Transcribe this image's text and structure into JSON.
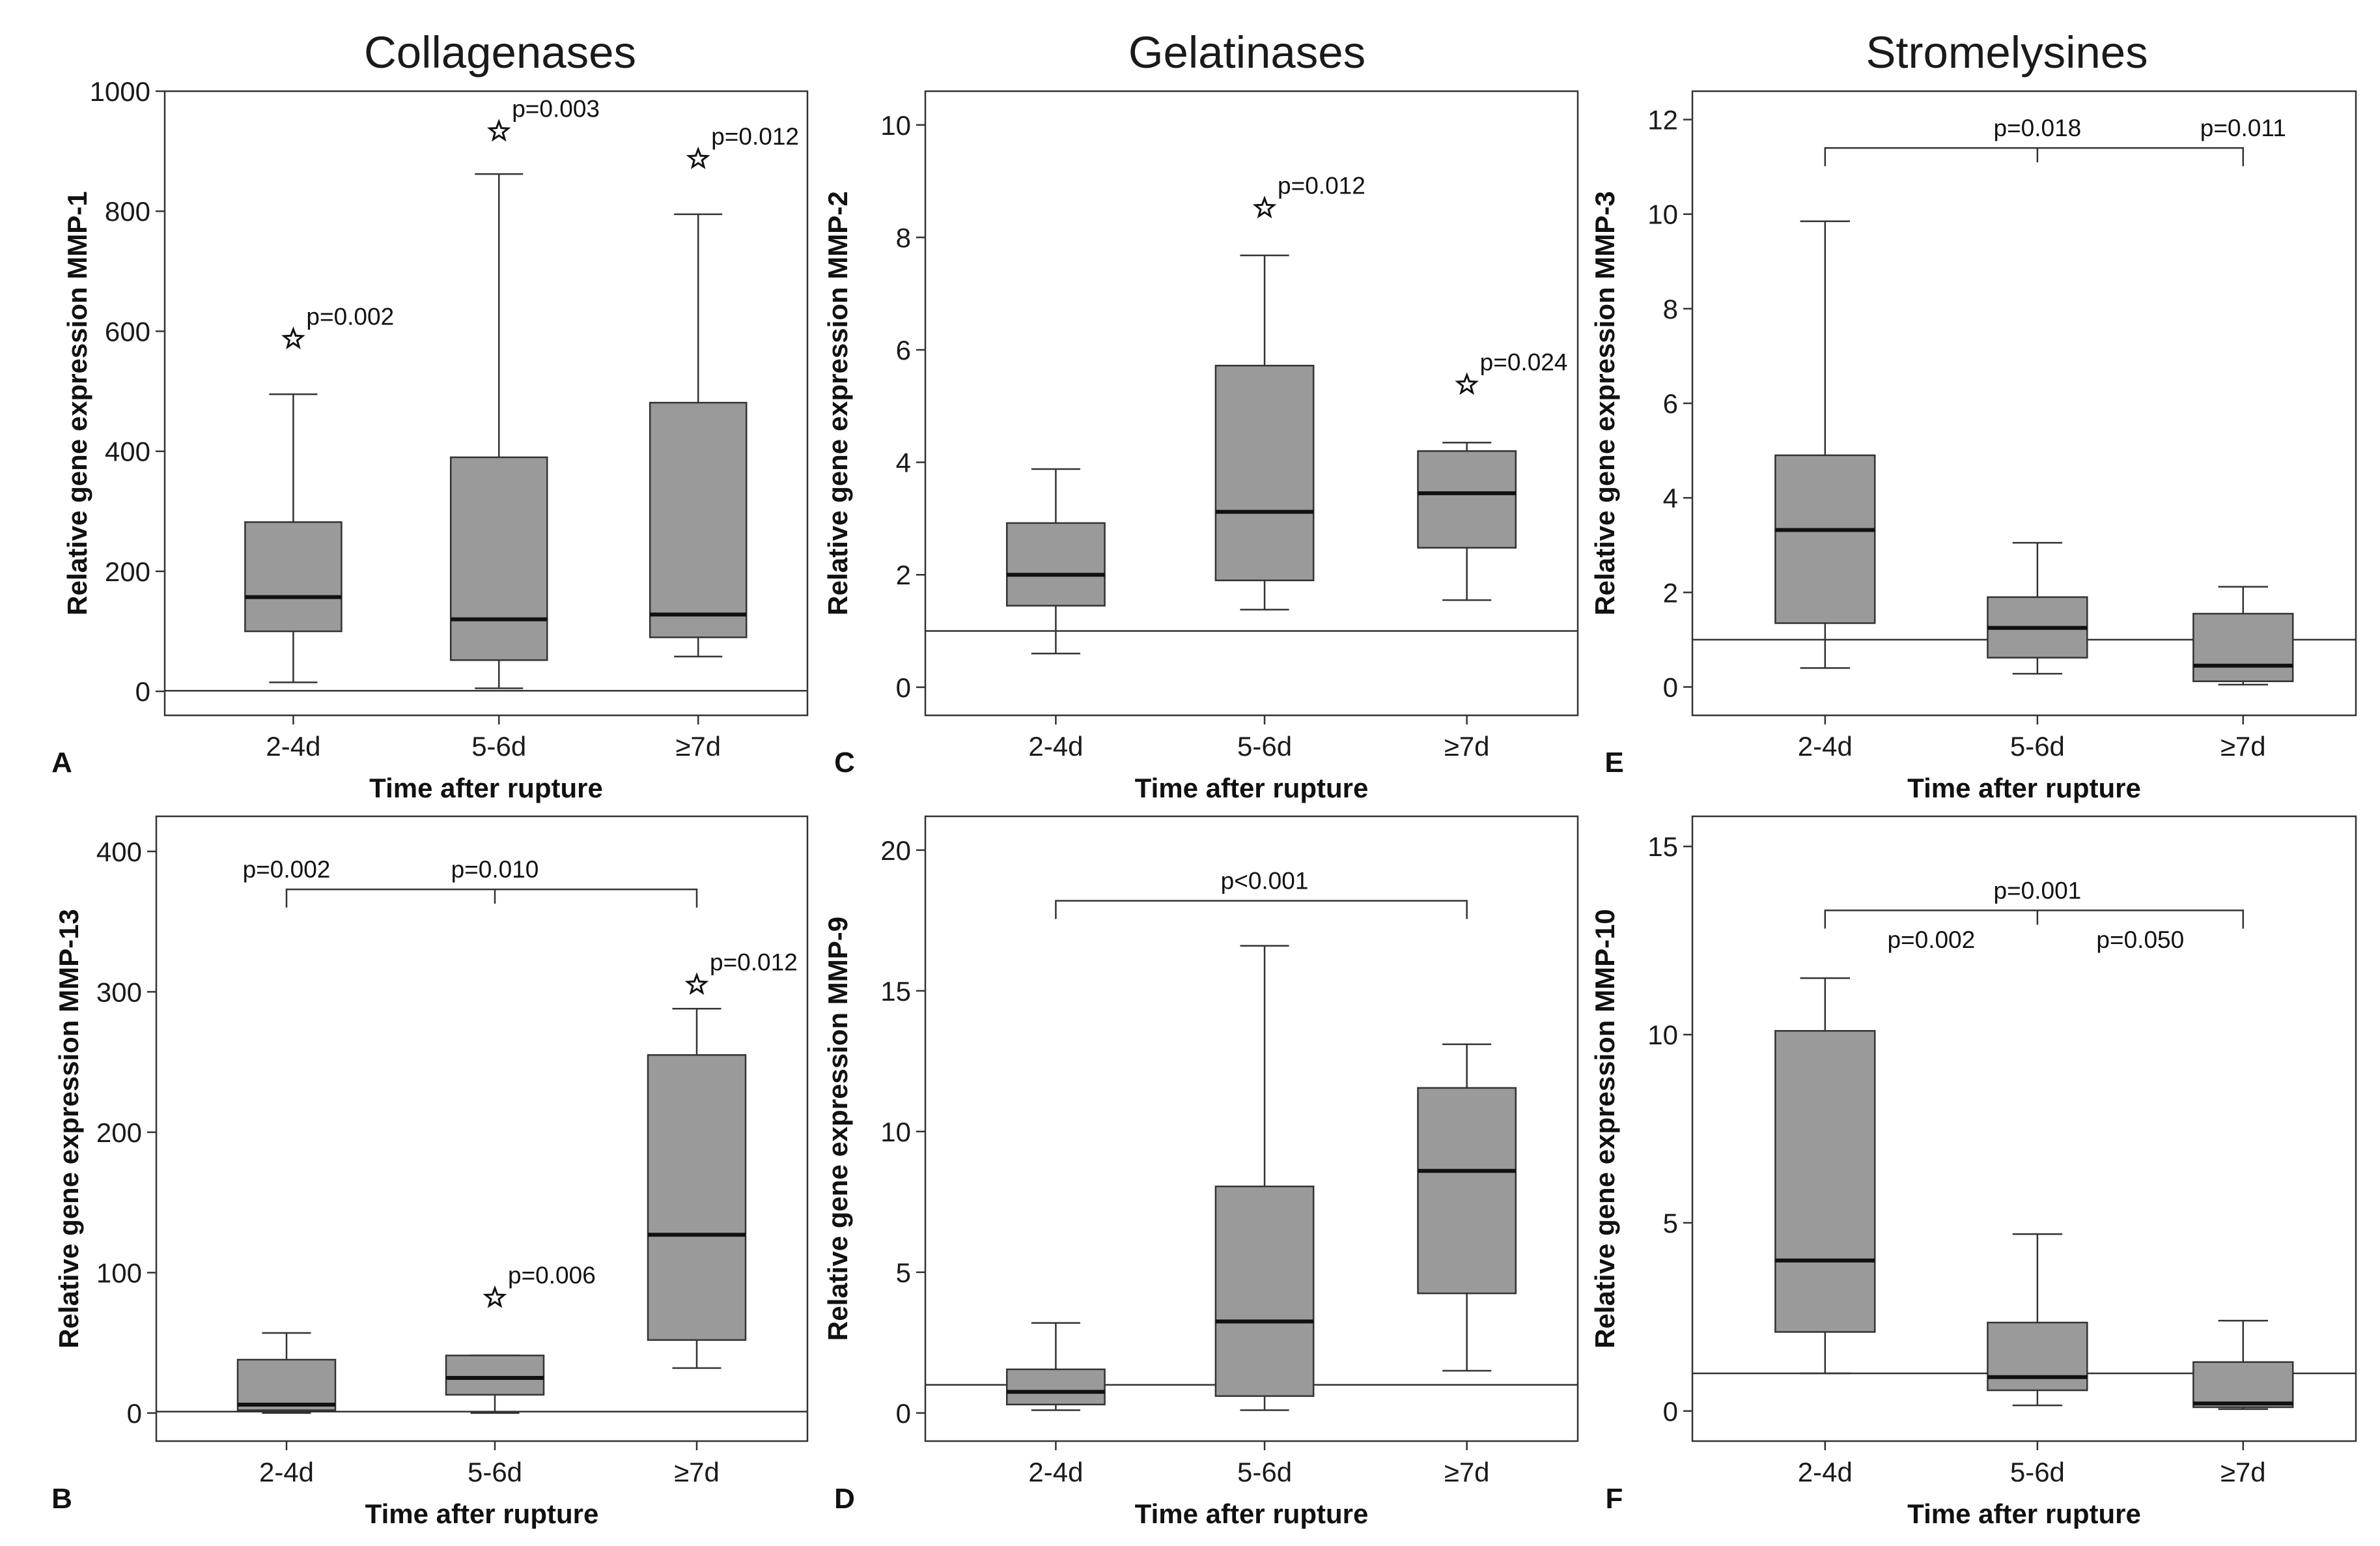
{
  "column_titles": [
    "Collagenases",
    "Gelatinases",
    "Stromelysines"
  ],
  "chart_data": [
    {
      "panel": "A",
      "type": "box",
      "column": "Collagenases",
      "xlabel": "Time after rupture",
      "ylabel": "Relative gene expression MMP-1",
      "categories": [
        "2-4d",
        "5-6d",
        "≥7d"
      ],
      "ylim": [
        -40,
        1000
      ],
      "yticks": [
        0,
        200,
        400,
        600,
        800,
        1000
      ],
      "reference_line": 1,
      "boxes": [
        {
          "min": 15,
          "q1": 100,
          "median": 157,
          "q3": 282,
          "max": 495
        },
        {
          "min": 5,
          "q1": 52,
          "median": 120,
          "q3": 390,
          "max": 862
        },
        {
          "min": 58,
          "q1": 90,
          "median": 128,
          "q3": 481,
          "max": 795
        }
      ],
      "outliers": [
        {
          "category": 0,
          "value": 587,
          "label": "p=0.002"
        },
        {
          "category": 1,
          "value": 933,
          "label": "p=0.003"
        },
        {
          "category": 2,
          "value": 887,
          "label": "p=0.012"
        }
      ],
      "brackets": []
    },
    {
      "panel": "C",
      "type": "box",
      "column": "Gelatinases",
      "xlabel": "Time after rupture",
      "ylabel": "Relative gene expression MMP-2",
      "categories": [
        "2-4d",
        "5-6d",
        "≥7d"
      ],
      "ylim": [
        -0.5,
        10.6
      ],
      "yticks": [
        0,
        2,
        4,
        6,
        8,
        10
      ],
      "reference_line": 1,
      "boxes": [
        {
          "min": 0.6,
          "q1": 1.45,
          "median": 2.0,
          "q3": 2.92,
          "max": 3.88
        },
        {
          "min": 1.38,
          "q1": 1.9,
          "median": 3.12,
          "q3": 5.72,
          "max": 7.68
        },
        {
          "min": 1.55,
          "q1": 2.48,
          "median": 3.45,
          "q3": 4.2,
          "max": 4.35
        }
      ],
      "outliers": [
        {
          "category": 1,
          "value": 8.52,
          "label": "p=0.012"
        },
        {
          "category": 2,
          "value": 5.38,
          "label": "p=0.024"
        }
      ],
      "brackets": []
    },
    {
      "panel": "E",
      "type": "box",
      "column": "Stromelysines",
      "xlabel": "Time after rupture",
      "ylabel": "Relative gene expression MMP-3",
      "categories": [
        "2-4d",
        "5-6d",
        "≥7d"
      ],
      "ylim": [
        -0.6,
        12.6
      ],
      "yticks": [
        0,
        2,
        4,
        6,
        8,
        10,
        12
      ],
      "reference_line": 1,
      "boxes": [
        {
          "min": 0.4,
          "q1": 1.35,
          "median": 3.32,
          "q3": 4.9,
          "max": 9.85
        },
        {
          "min": 0.28,
          "q1": 0.62,
          "median": 1.25,
          "q3": 1.9,
          "max": 3.05
        },
        {
          "min": 0.05,
          "q1": 0.12,
          "median": 0.45,
          "q3": 1.55,
          "max": 2.12
        }
      ],
      "outliers": [],
      "brackets": [
        {
          "from": 0,
          "to": 2,
          "level": 11.4,
          "ticks": [
            1
          ],
          "labels": [
            {
              "at": 1,
              "text": "p=0.018"
            },
            {
              "at": 2,
              "text": "p=0.011"
            }
          ]
        }
      ]
    },
    {
      "panel": "B",
      "type": "box",
      "column": "Collagenases",
      "xlabel": "Time after rupture",
      "ylabel": "Relative gene expression MMP-13",
      "categories": [
        "2-4d",
        "5-6d",
        "≥7d"
      ],
      "ylim": [
        -20,
        425
      ],
      "yticks": [
        0,
        100,
        200,
        300,
        400
      ],
      "reference_line": 1,
      "boxes": [
        {
          "min": 0,
          "q1": 2,
          "median": 6,
          "q3": 38,
          "max": 57
        },
        {
          "min": 0,
          "q1": 13,
          "median": 25,
          "q3": 41,
          "max": 41
        },
        {
          "min": 32,
          "q1": 52,
          "median": 127,
          "q3": 255,
          "max": 288
        }
      ],
      "outliers": [
        {
          "category": 1,
          "value": 82,
          "label": "p=0.006"
        },
        {
          "category": 2,
          "value": 305,
          "label": "p=0.012"
        }
      ],
      "brackets": [
        {
          "from": 0,
          "to": 2,
          "level": 373,
          "ticks": [
            1
          ],
          "labels": [
            {
              "at": 0,
              "text": "p=0.002"
            },
            {
              "at": 1,
              "text": "p=0.010"
            }
          ]
        }
      ]
    },
    {
      "panel": "D",
      "type": "box",
      "column": "Gelatinases",
      "xlabel": "Time after rupture",
      "ylabel": "Relative gene expression MMP-9",
      "categories": [
        "2-4d",
        "5-6d",
        "≥7d"
      ],
      "ylim": [
        -1,
        21.2
      ],
      "yticks": [
        0,
        5,
        10,
        15,
        20
      ],
      "reference_line": 1,
      "boxes": [
        {
          "min": 0.1,
          "q1": 0.3,
          "median": 0.75,
          "q3": 1.55,
          "max": 3.2
        },
        {
          "min": 0.1,
          "q1": 0.6,
          "median": 3.25,
          "q3": 8.05,
          "max": 16.6
        },
        {
          "min": 1.5,
          "q1": 4.25,
          "median": 8.6,
          "q3": 11.55,
          "max": 13.1
        }
      ],
      "outliers": [],
      "brackets": [
        {
          "from": 0,
          "to": 2,
          "level": 18.2,
          "ticks": [],
          "labels": [
            {
              "at": 1,
              "text": "p<0.001"
            }
          ]
        }
      ]
    },
    {
      "panel": "F",
      "type": "box",
      "column": "Stromelysines",
      "xlabel": "Time after rupture",
      "ylabel": "Relative gene expression MMP-10",
      "categories": [
        "2-4d",
        "5-6d",
        "≥7d"
      ],
      "ylim": [
        -0.8,
        15.8
      ],
      "yticks": [
        0,
        5,
        10,
        15
      ],
      "reference_line": 1,
      "boxes": [
        {
          "min": 1.0,
          "q1": 2.1,
          "median": 4.0,
          "q3": 10.1,
          "max": 11.5
        },
        {
          "min": 0.15,
          "q1": 0.55,
          "median": 0.9,
          "q3": 2.35,
          "max": 4.7
        },
        {
          "min": 0.05,
          "q1": 0.1,
          "median": 0.2,
          "q3": 1.3,
          "max": 2.4
        }
      ],
      "outliers": [],
      "brackets": [
        {
          "from": 0,
          "to": 2,
          "level": 13.3,
          "ticks": [
            1
          ],
          "labels": [
            {
              "at": 1,
              "text": "p=0.001"
            }
          ]
        }
      ],
      "free_labels": [
        {
          "at": 0.5,
          "value": 12.3,
          "text": "p=0.002"
        },
        {
          "at": 1.5,
          "value": 12.3,
          "text": "p=0.050"
        }
      ]
    }
  ]
}
